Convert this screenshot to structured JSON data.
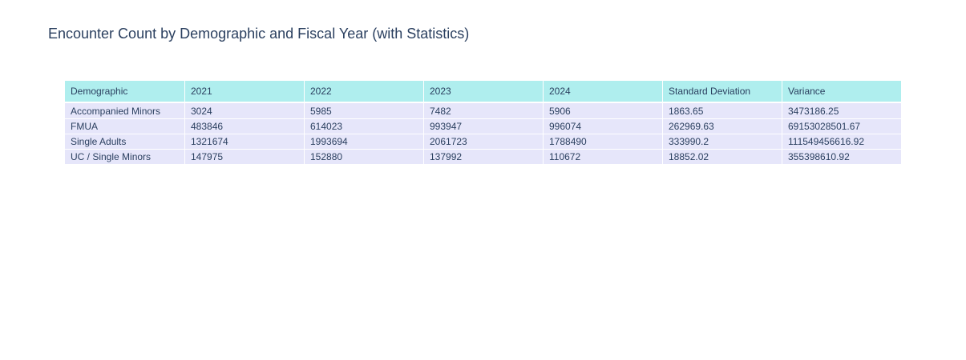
{
  "title": "Encounter Count by Demographic and Fiscal Year (with Statistics)",
  "colors": {
    "header_fill": "#afeeee",
    "cell_fill": "#e6e6fa",
    "text": "#2a3f5f"
  },
  "chart_data": {
    "type": "table",
    "title": "Encounter Count by Demographic and Fiscal Year (with Statistics)",
    "columns": [
      "Demographic",
      "2021",
      "2022",
      "2023",
      "2024",
      "Standard Deviation",
      "Variance"
    ],
    "rows": [
      [
        "Accompanied Minors",
        "3024",
        "5985",
        "7482",
        "5906",
        "1863.65",
        "3473186.25"
      ],
      [
        "FMUA",
        "483846",
        "614023",
        "993947",
        "996074",
        "262969.63",
        "69153028501.67"
      ],
      [
        "Single Adults",
        "1321674",
        "1993694",
        "2061723",
        "1788490",
        "333990.2",
        "111549456616.92"
      ],
      [
        "UC / Single Minors",
        "147975",
        "152880",
        "137992",
        "110672",
        "18852.02",
        "355398610.92"
      ]
    ]
  }
}
